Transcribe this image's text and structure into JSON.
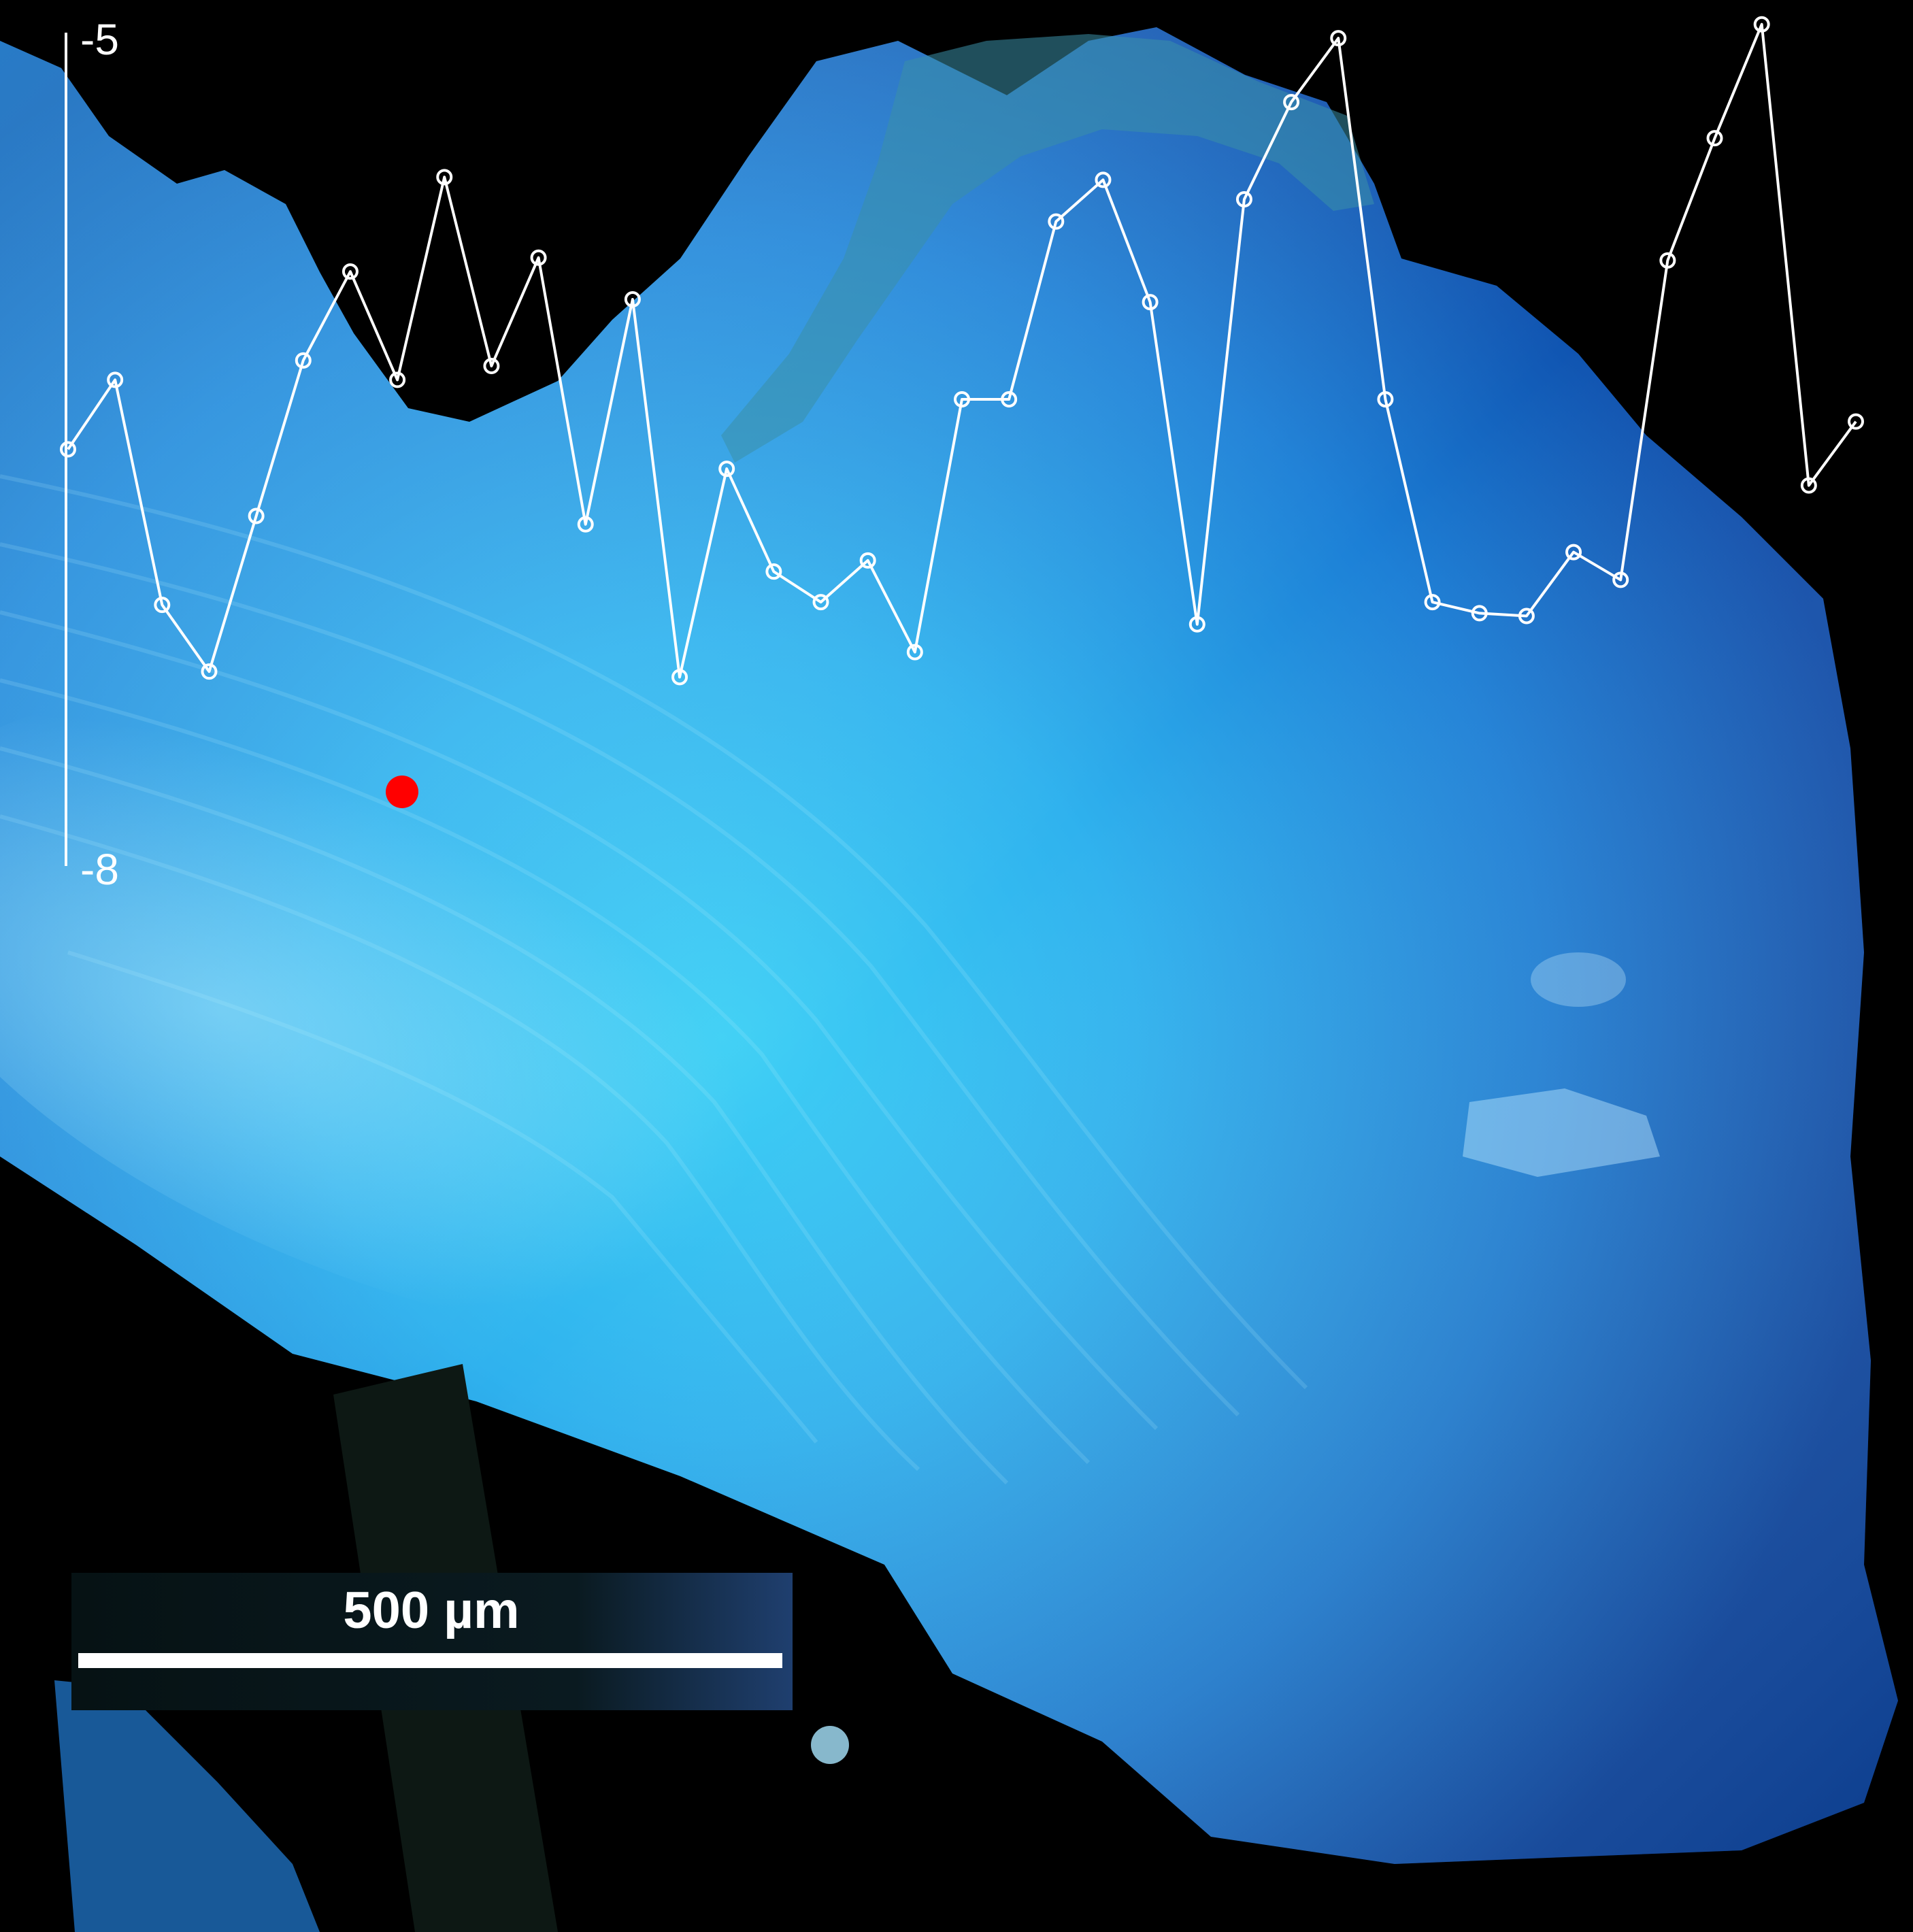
{
  "image": {
    "description_kind": "fluorescence micrograph with overlaid profile",
    "colors": {
      "background": "#000000",
      "sample_bright": "#3fd0f5",
      "sample_mid": "#1f86dc",
      "sample_deep": "#0d4aa8",
      "line": "#ffffff",
      "marker": "#ff0000"
    }
  },
  "scale_bar": {
    "label": "500 µm"
  },
  "chart_data": {
    "type": "line",
    "title": "",
    "xlabel": "",
    "ylabel": "",
    "ylim": [
      -8,
      -5
    ],
    "y_tick_labels": [
      "-5",
      "-8"
    ],
    "grid": false,
    "series": [
      {
        "values": [
          -6.5,
          -6.25,
          -7.06,
          -7.3,
          -6.74,
          -6.18,
          -5.86,
          -6.25,
          -5.52,
          -6.2,
          -5.81,
          -6.77,
          -5.96,
          -7.32,
          -6.57,
          -6.94,
          -7.05,
          -6.9,
          -7.23,
          -6.32,
          -6.32,
          -5.68,
          -5.53,
          -5.97,
          -7.13,
          -5.6,
          -5.25,
          -5.02,
          -6.32,
          -7.05,
          -7.09,
          -7.1,
          -6.87,
          -6.97,
          -5.82,
          -5.38,
          -4.97,
          -6.63,
          -6.4
        ]
      }
    ],
    "highlight_marker": {
      "color": "#ff0000"
    }
  }
}
